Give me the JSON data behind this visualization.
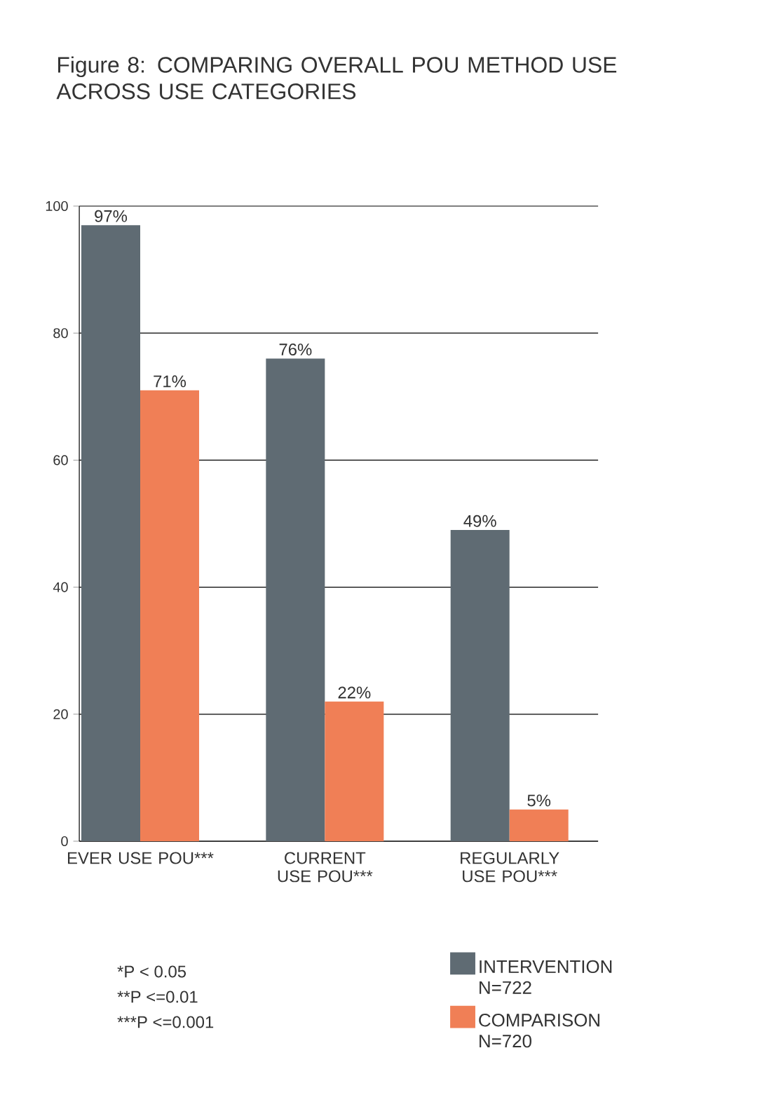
{
  "chart_data": {
    "type": "bar",
    "title": "Figure 8: COMPARING OVERALL POU METHOD USE ACROSS USE CATEGORIES",
    "categories": [
      "EVER USE POU***",
      "CURRENT USE POU***",
      "REGULARLY USE POU***"
    ],
    "series": [
      {
        "name": "INTERVENTION N=722",
        "color": "#5f6b73",
        "values": [
          97,
          76,
          49
        ],
        "value_labels": [
          "97%",
          "76%",
          "49%"
        ]
      },
      {
        "name": "COMPARISON N=720",
        "color": "#f07f56",
        "values": [
          71,
          22,
          5
        ],
        "value_labels": [
          "71%",
          "22%",
          "5%"
        ]
      }
    ],
    "ylim": [
      0,
      100
    ],
    "yticks": [
      0,
      20,
      40,
      60,
      80,
      100
    ],
    "grid": "y",
    "legend": "bottom right",
    "annotations": [
      "*P < 0.05",
      "**P <=0.01",
      "***P <=0.001"
    ]
  }
}
